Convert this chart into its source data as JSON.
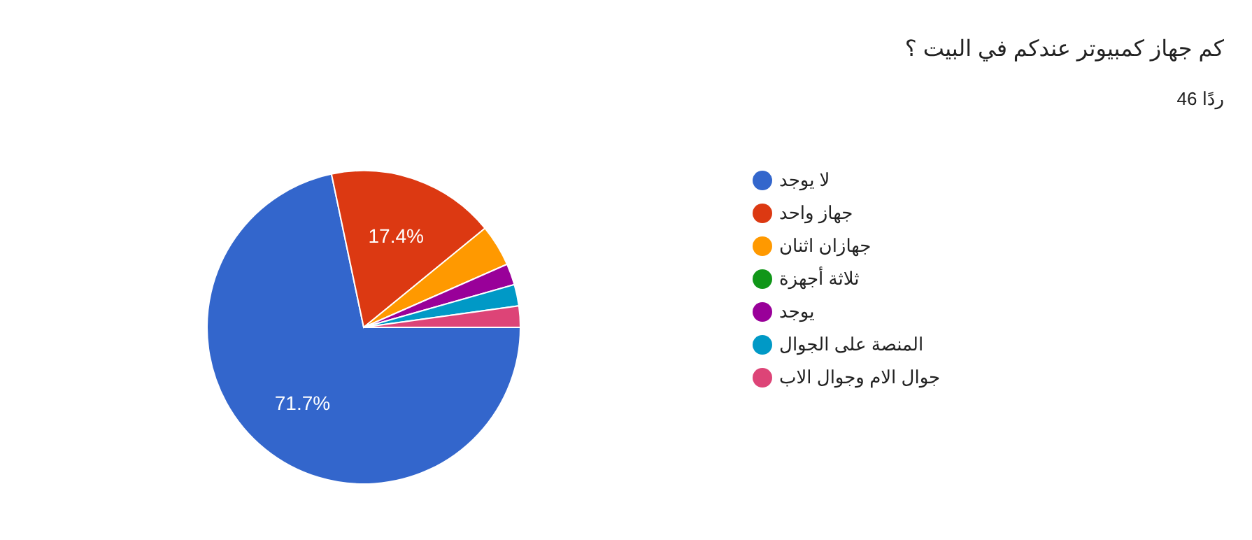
{
  "chart_data": {
    "type": "pie",
    "title": "كم جهاز كمبيوتر عندكم في البيت ؟",
    "subtitle": "46 ردًا",
    "categories": [
      "لا يوجد",
      "جهاز واحد",
      "جهازان اثنان",
      "ثلاثة أجهزة",
      "يوجد",
      "المنصة على الجوال",
      "جوال الام وجوال الاب"
    ],
    "values": [
      71.7,
      17.4,
      4.3,
      0,
      2.2,
      2.2,
      2.2
    ],
    "colors": [
      "#3366cc",
      "#dc3912",
      "#ff9900",
      "#109618",
      "#990099",
      "#0099c6",
      "#dd4477"
    ],
    "value_labels": [
      "71.7%",
      "17.4%",
      null,
      null,
      null,
      null,
      null
    ],
    "legend": "right"
  }
}
